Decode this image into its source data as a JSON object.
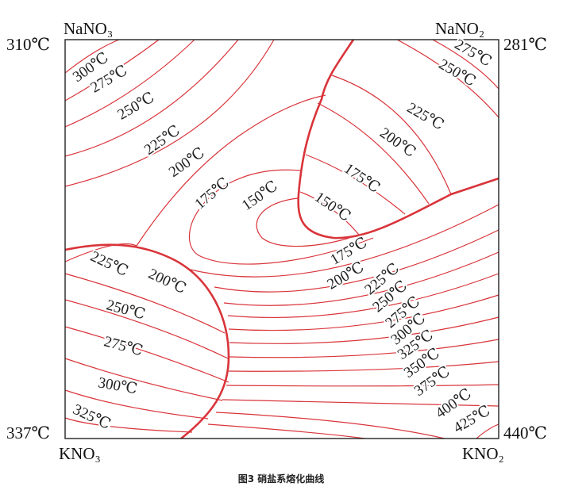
{
  "corners": {
    "top_left": {
      "name": "NaNO₃",
      "temperature": "310℃"
    },
    "top_right": {
      "name": "NaNO₂",
      "temperature": "281℃"
    },
    "bottom_left": {
      "name": "KNO₃",
      "temperature": "337℃"
    },
    "bottom_right": {
      "name": "KNO₂",
      "temperature": "440℃"
    }
  },
  "isotherm_labels": [
    "300℃",
    "275℃",
    "250℃",
    "225℃",
    "200℃",
    "175℃",
    "150℃",
    "275℃",
    "250℃",
    "225℃",
    "200℃",
    "175℃",
    "150℃",
    "175℃",
    "200℃",
    "225℃",
    "250℃",
    "275℃",
    "300℃",
    "325℃",
    "350℃",
    "375℃",
    "400℃",
    "425℃",
    "225℃",
    "200℃",
    "250℃",
    "275℃",
    "300℃",
    "325℃"
  ],
  "caption": "图3 硝盐系熔化曲线"
}
